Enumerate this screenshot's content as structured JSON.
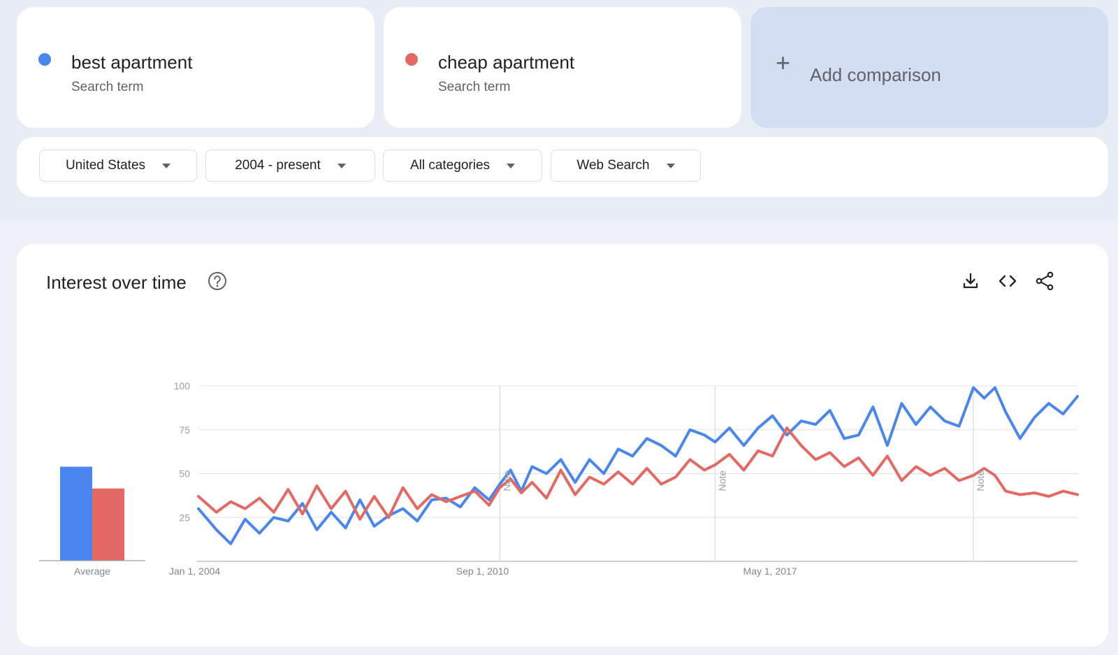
{
  "terms": [
    {
      "name": "best apartment",
      "sub": "Search term",
      "color": "#4a86f0"
    },
    {
      "name": "cheap apartment",
      "sub": "Search term",
      "color": "#e46962"
    }
  ],
  "add_comparison": {
    "icon": "plus-icon",
    "label": "Add comparison"
  },
  "filters": {
    "region": "United States",
    "time": "2004 - present",
    "category": "All categories",
    "search_type": "Web Search"
  },
  "chart_panel": {
    "title": "Interest over time",
    "icons": [
      "help-icon",
      "download-icon",
      "embed-icon",
      "share-icon"
    ],
    "note_label": "Note"
  },
  "chart_data": {
    "type": "line",
    "y_ticks": [
      25,
      50,
      75,
      100
    ],
    "ylim": [
      0,
      100
    ],
    "x_ticks": [
      "Jan 1, 2004",
      "Sep 1, 2010",
      "May 1, 2017"
    ],
    "x_range": [
      "2004-01",
      "2024-06"
    ],
    "grid": true,
    "notes": [
      "2011-01",
      "2016-01",
      "2022-01"
    ],
    "average": {
      "label": "Average",
      "values": [
        56,
        43
      ]
    },
    "series": [
      {
        "name": "best apartment",
        "color": "#4a86f0",
        "points": [
          [
            "2004-01",
            30
          ],
          [
            "2004-06",
            18
          ],
          [
            "2004-10",
            10
          ],
          [
            "2005-02",
            24
          ],
          [
            "2005-06",
            16
          ],
          [
            "2005-10",
            25
          ],
          [
            "2006-02",
            23
          ],
          [
            "2006-06",
            33
          ],
          [
            "2006-10",
            18
          ],
          [
            "2007-02",
            28
          ],
          [
            "2007-06",
            19
          ],
          [
            "2007-10",
            35
          ],
          [
            "2008-02",
            20
          ],
          [
            "2008-06",
            26
          ],
          [
            "2008-10",
            30
          ],
          [
            "2009-02",
            23
          ],
          [
            "2009-06",
            35
          ],
          [
            "2009-10",
            36
          ],
          [
            "2010-02",
            31
          ],
          [
            "2010-06",
            42
          ],
          [
            "2010-10",
            35
          ],
          [
            "2011-01",
            44
          ],
          [
            "2011-04",
            52
          ],
          [
            "2011-07",
            40
          ],
          [
            "2011-10",
            54
          ],
          [
            "2012-02",
            50
          ],
          [
            "2012-06",
            58
          ],
          [
            "2012-10",
            45
          ],
          [
            "2013-02",
            58
          ],
          [
            "2013-06",
            50
          ],
          [
            "2013-10",
            64
          ],
          [
            "2014-02",
            60
          ],
          [
            "2014-06",
            70
          ],
          [
            "2014-10",
            66
          ],
          [
            "2015-02",
            60
          ],
          [
            "2015-06",
            75
          ],
          [
            "2015-10",
            72
          ],
          [
            "2016-01",
            68
          ],
          [
            "2016-05",
            76
          ],
          [
            "2016-09",
            66
          ],
          [
            "2017-01",
            76
          ],
          [
            "2017-05",
            83
          ],
          [
            "2017-09",
            72
          ],
          [
            "2018-01",
            80
          ],
          [
            "2018-05",
            78
          ],
          [
            "2018-09",
            86
          ],
          [
            "2019-01",
            70
          ],
          [
            "2019-05",
            72
          ],
          [
            "2019-09",
            88
          ],
          [
            "2020-01",
            66
          ],
          [
            "2020-05",
            90
          ],
          [
            "2020-09",
            78
          ],
          [
            "2021-01",
            88
          ],
          [
            "2021-05",
            80
          ],
          [
            "2021-09",
            77
          ],
          [
            "2022-01",
            99
          ],
          [
            "2022-04",
            93
          ],
          [
            "2022-07",
            99
          ],
          [
            "2022-10",
            85
          ],
          [
            "2023-02",
            70
          ],
          [
            "2023-06",
            82
          ],
          [
            "2023-10",
            90
          ],
          [
            "2024-02",
            84
          ],
          [
            "2024-06",
            94
          ]
        ]
      },
      {
        "name": "cheap apartment",
        "color": "#e46962",
        "points": [
          [
            "2004-01",
            37
          ],
          [
            "2004-06",
            28
          ],
          [
            "2004-10",
            34
          ],
          [
            "2005-02",
            30
          ],
          [
            "2005-06",
            36
          ],
          [
            "2005-10",
            28
          ],
          [
            "2006-02",
            41
          ],
          [
            "2006-06",
            27
          ],
          [
            "2006-10",
            43
          ],
          [
            "2007-02",
            30
          ],
          [
            "2007-06",
            40
          ],
          [
            "2007-10",
            24
          ],
          [
            "2008-02",
            37
          ],
          [
            "2008-06",
            25
          ],
          [
            "2008-10",
            42
          ],
          [
            "2009-02",
            30
          ],
          [
            "2009-06",
            38
          ],
          [
            "2009-10",
            34
          ],
          [
            "2010-02",
            37
          ],
          [
            "2010-06",
            40
          ],
          [
            "2010-10",
            32
          ],
          [
            "2011-01",
            42
          ],
          [
            "2011-04",
            47
          ],
          [
            "2011-07",
            39
          ],
          [
            "2011-10",
            45
          ],
          [
            "2012-02",
            36
          ],
          [
            "2012-06",
            52
          ],
          [
            "2012-10",
            38
          ],
          [
            "2013-02",
            48
          ],
          [
            "2013-06",
            44
          ],
          [
            "2013-10",
            51
          ],
          [
            "2014-02",
            44
          ],
          [
            "2014-06",
            53
          ],
          [
            "2014-10",
            44
          ],
          [
            "2015-02",
            48
          ],
          [
            "2015-06",
            58
          ],
          [
            "2015-10",
            52
          ],
          [
            "2016-01",
            55
          ],
          [
            "2016-05",
            61
          ],
          [
            "2016-09",
            52
          ],
          [
            "2017-01",
            63
          ],
          [
            "2017-05",
            60
          ],
          [
            "2017-09",
            76
          ],
          [
            "2018-01",
            66
          ],
          [
            "2018-05",
            58
          ],
          [
            "2018-09",
            62
          ],
          [
            "2019-01",
            54
          ],
          [
            "2019-05",
            59
          ],
          [
            "2019-09",
            49
          ],
          [
            "2020-01",
            60
          ],
          [
            "2020-05",
            46
          ],
          [
            "2020-09",
            54
          ],
          [
            "2021-01",
            49
          ],
          [
            "2021-05",
            53
          ],
          [
            "2021-09",
            46
          ],
          [
            "2022-01",
            49
          ],
          [
            "2022-04",
            53
          ],
          [
            "2022-07",
            49
          ],
          [
            "2022-10",
            40
          ],
          [
            "2023-02",
            38
          ],
          [
            "2023-06",
            39
          ],
          [
            "2023-10",
            37
          ],
          [
            "2024-02",
            40
          ],
          [
            "2024-06",
            38
          ]
        ]
      }
    ]
  }
}
